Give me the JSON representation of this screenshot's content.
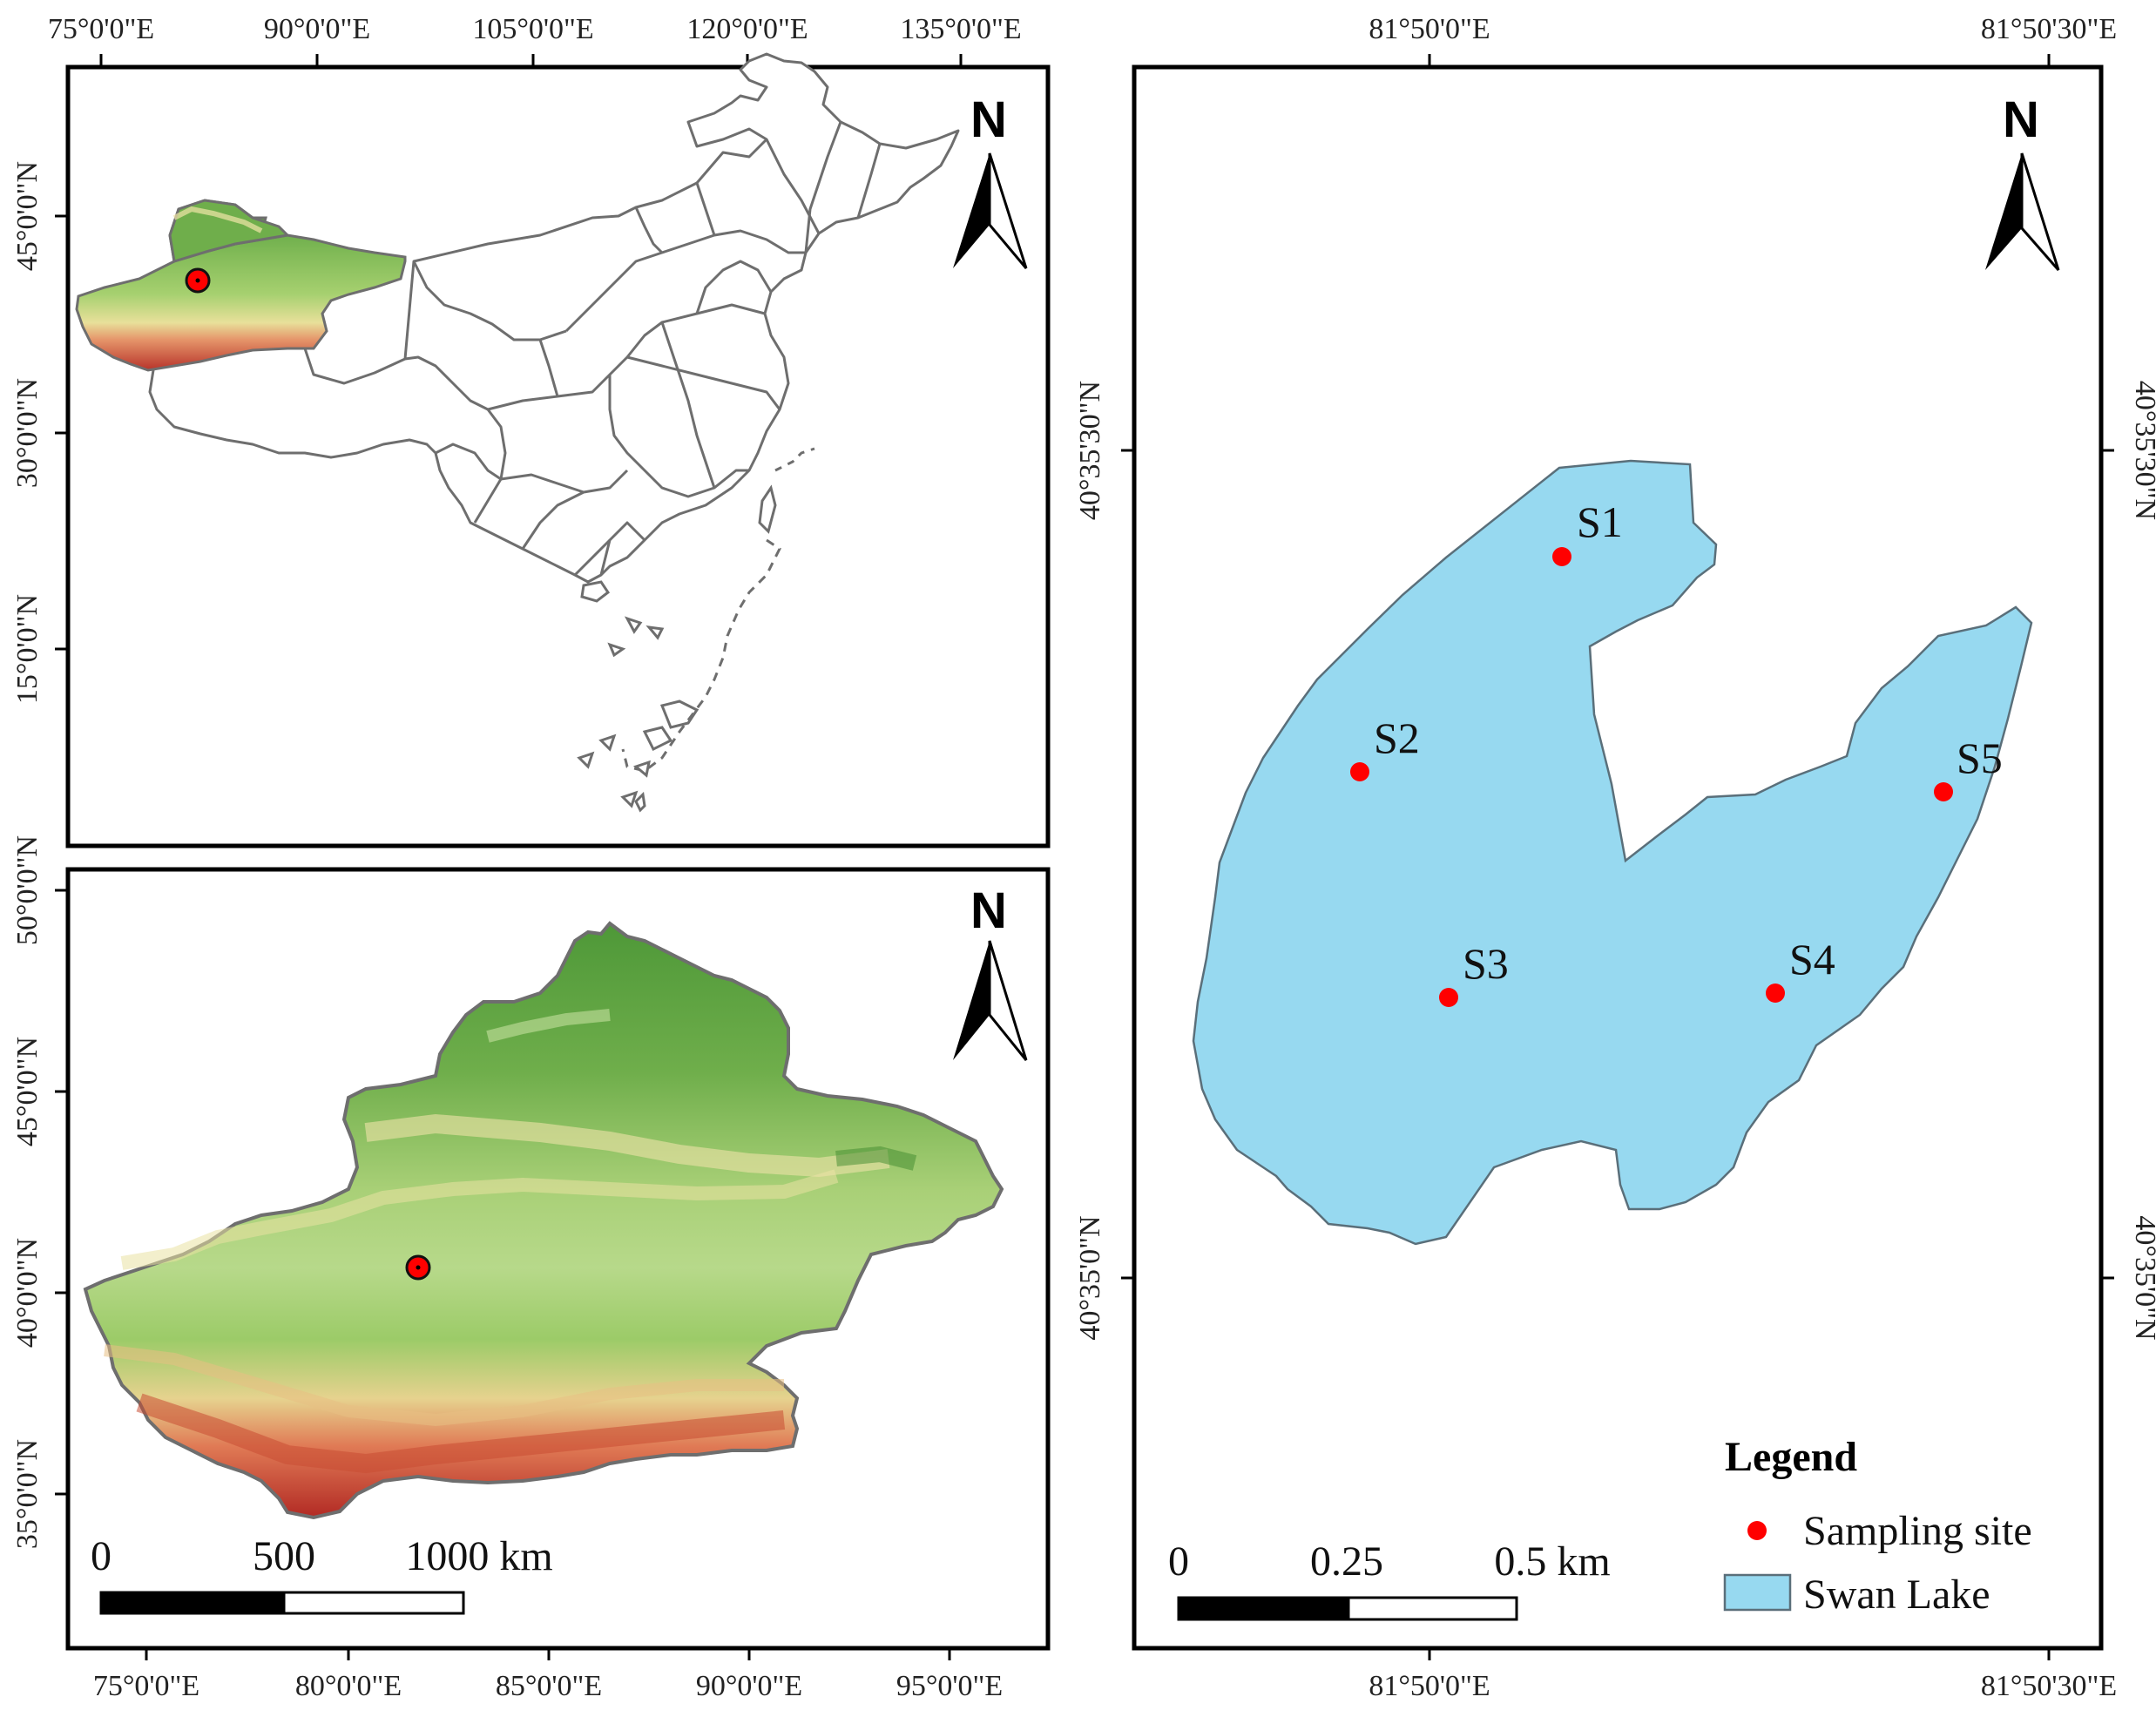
{
  "colors": {
    "frame": "#000000",
    "admin_boundary": "#6e6e6e",
    "lake_fill": "#97d9f0",
    "lake_stroke": "#5a6f7a",
    "site": "#ff0000",
    "dem_low": "#66a843",
    "dem_mid": "#d9efa0",
    "dem_high": "#c0392b"
  },
  "china_map": {
    "top_labels": [
      "75°0'0\"E",
      "90°0'0\"E",
      "105°0'0\"E",
      "120°0'0\"E",
      "135°0'0\"E"
    ],
    "left_labels": [
      "45°0'0\"N",
      "30°0'0\"N",
      "15°0'0\"N"
    ],
    "north": "N"
  },
  "xinjiang_map": {
    "bottom_labels": [
      "75°0'0\"E",
      "80°0'0\"E",
      "85°0'0\"E",
      "90°0'0\"E",
      "95°0'0\"E"
    ],
    "left_labels": [
      "50°0'0\"N",
      "45°0'0\"N",
      "40°0'0\"N",
      "35°0'0\"N"
    ],
    "north": "N",
    "scale_labels": [
      "0",
      "500",
      "1000 km"
    ]
  },
  "lake_map": {
    "top_labels": [
      "81°50'0\"E",
      "81°50'30\"E"
    ],
    "bottom_labels": [
      "81°50'0\"E",
      "81°50'30\"E"
    ],
    "left_labels": [
      "40°35'30\"N",
      "40°35'0\"N"
    ],
    "right_labels": [
      "40°35'30\"N",
      "40°35'0\"N"
    ],
    "north": "N",
    "scale_labels": [
      "0",
      "0.25",
      "0.5 km"
    ],
    "sites": [
      "S1",
      "S2",
      "S3",
      "S4",
      "S5"
    ]
  },
  "legend": {
    "title": "Legend",
    "items": [
      {
        "label": "Sampling site",
        "symbol": "red-dot"
      },
      {
        "label": "Swan Lake",
        "symbol": "blue-fill"
      }
    ]
  }
}
